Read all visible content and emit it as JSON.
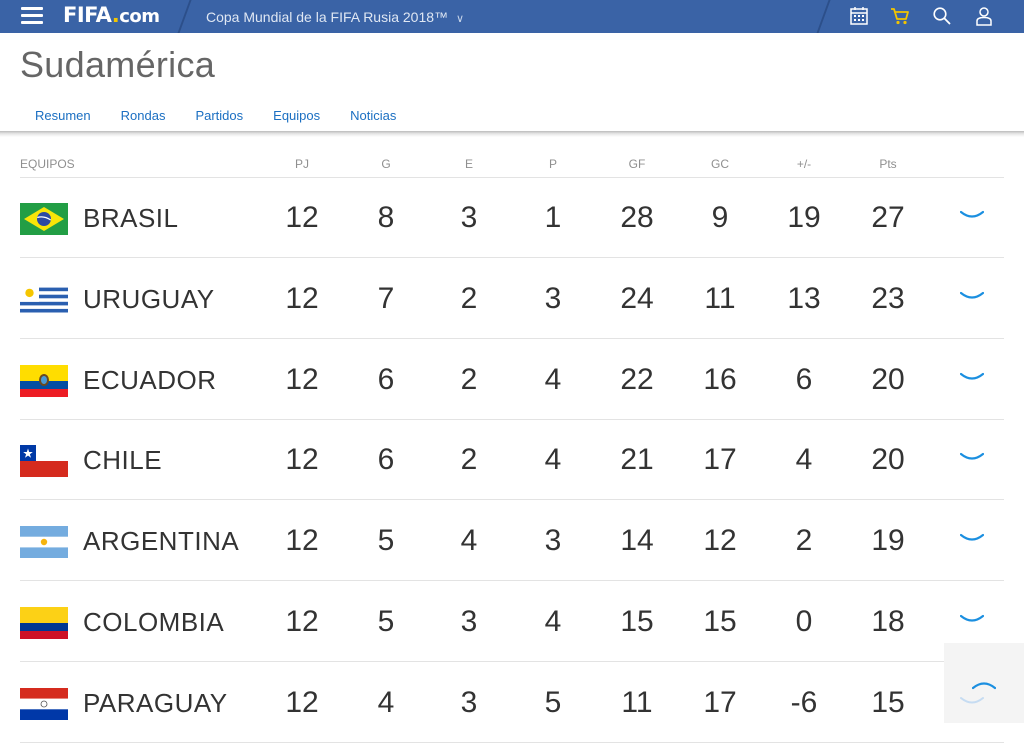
{
  "topbar": {
    "logo": {
      "main": "FIFA",
      "dot": ".",
      "suffix": "com"
    },
    "tournament": "Copa Mundial de la FIFA Rusia 2018™",
    "icons": [
      "hamburger-menu-icon",
      "calendar-icon",
      "cart-icon",
      "search-icon",
      "user-icon"
    ],
    "accent": "#3a63a6",
    "cart_color": "#f2c500"
  },
  "header": {
    "region": "Sudamérica"
  },
  "tabs": [
    {
      "label": "Resumen",
      "active": false
    },
    {
      "label": "Rondas",
      "active": true
    },
    {
      "label": "Partidos",
      "active": false
    },
    {
      "label": "Equipos",
      "active": false
    },
    {
      "label": "Noticias",
      "active": false
    }
  ],
  "table": {
    "headers": {
      "team": "EQUIPOS",
      "pj": "PJ",
      "g": "G",
      "e": "E",
      "p": "P",
      "gf": "GF",
      "gc": "GC",
      "diff": "+/-",
      "pts": "Pts"
    },
    "rows": [
      {
        "team": "BRASIL",
        "flag": "brazil-flag-icon",
        "pj": "12",
        "g": "8",
        "e": "3",
        "p": "1",
        "gf": "28",
        "gc": "9",
        "diff": "19",
        "pts": "27"
      },
      {
        "team": "URUGUAY",
        "flag": "uruguay-flag-icon",
        "pj": "12",
        "g": "7",
        "e": "2",
        "p": "3",
        "gf": "24",
        "gc": "11",
        "diff": "13",
        "pts": "23"
      },
      {
        "team": "ECUADOR",
        "flag": "ecuador-flag-icon",
        "pj": "12",
        "g": "6",
        "e": "2",
        "p": "4",
        "gf": "22",
        "gc": "16",
        "diff": "6",
        "pts": "20"
      },
      {
        "team": "CHILE",
        "flag": "chile-flag-icon",
        "pj": "12",
        "g": "6",
        "e": "2",
        "p": "4",
        "gf": "21",
        "gc": "17",
        "diff": "4",
        "pts": "20"
      },
      {
        "team": "ARGENTINA",
        "flag": "argentina-flag-icon",
        "pj": "12",
        "g": "5",
        "e": "4",
        "p": "3",
        "gf": "14",
        "gc": "12",
        "diff": "2",
        "pts": "19"
      },
      {
        "team": "COLOMBIA",
        "flag": "colombia-flag-icon",
        "pj": "12",
        "g": "5",
        "e": "3",
        "p": "4",
        "gf": "15",
        "gc": "15",
        "diff": "0",
        "pts": "18"
      },
      {
        "team": "PARAGUAY",
        "flag": "paraguay-flag-icon",
        "pj": "12",
        "g": "4",
        "e": "3",
        "p": "5",
        "gf": "11",
        "gc": "17",
        "diff": "-6",
        "pts": "15"
      }
    ]
  },
  "link_color": "#1b6fc2"
}
